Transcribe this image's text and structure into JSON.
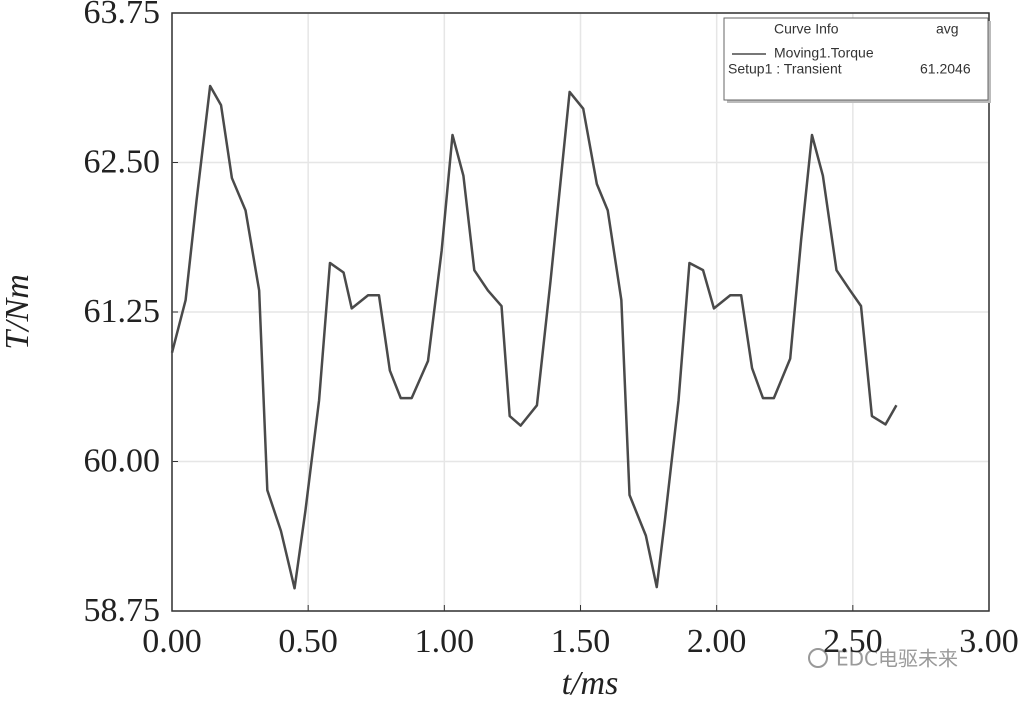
{
  "chart_data": {
    "type": "line",
    "x": [
      0,
      0.05,
      0.09,
      0.14,
      0.18,
      0.22,
      0.27,
      0.32,
      0.35,
      0.4,
      0.45,
      0.49,
      0.54,
      0.58,
      0.63,
      0.66,
      0.72,
      0.76,
      0.8,
      0.84,
      0.88,
      0.94,
      0.99,
      1.03,
      1.07,
      1.11,
      1.16,
      1.21,
      1.24,
      1.28,
      1.34,
      1.39,
      1.46,
      1.51,
      1.56,
      1.6,
      1.65,
      1.68,
      1.74,
      1.78,
      1.81,
      1.86,
      1.9,
      1.95,
      1.99,
      2.05,
      2.09,
      2.13,
      2.17,
      2.21,
      2.27,
      2.31,
      2.35,
      2.39,
      2.44,
      2.49,
      2.53,
      2.57,
      2.62,
      2.66
    ],
    "series": [
      {
        "name": "Moving1.Torque",
        "color": "#4a4a4a",
        "values": [
          60.91,
          61.35,
          62.18,
          63.14,
          62.98,
          62.37,
          62.1,
          61.43,
          59.76,
          59.42,
          58.94,
          59.59,
          60.51,
          61.66,
          61.58,
          61.28,
          61.39,
          61.39,
          60.76,
          60.53,
          60.53,
          60.84,
          61.76,
          62.73,
          62.39,
          61.6,
          61.43,
          61.3,
          60.38,
          60.3,
          60.47,
          61.51,
          63.09,
          62.95,
          62.32,
          62.1,
          61.35,
          59.72,
          59.38,
          58.95,
          59.51,
          60.51,
          61.66,
          61.6,
          61.28,
          61.39,
          61.39,
          60.78,
          60.53,
          60.53,
          60.86,
          61.85,
          62.73,
          62.39,
          61.6,
          61.43,
          61.3,
          60.38,
          60.31,
          60.47
        ]
      }
    ],
    "x_label": "t/ms",
    "y_label": "T/Nm",
    "xlim": [
      0,
      3
    ],
    "ylim": [
      58.75,
      63.75
    ],
    "xticks": [
      {
        "value": 0,
        "label": "0.00"
      },
      {
        "value": 0.5,
        "label": "0.50"
      },
      {
        "value": 1,
        "label": "1.00"
      },
      {
        "value": 1.5,
        "label": "1.50"
      },
      {
        "value": 2,
        "label": "2.00"
      },
      {
        "value": 2.5,
        "label": "2.50"
      },
      {
        "value": 3,
        "label": "3.00"
      }
    ],
    "yticks": [
      {
        "value": 58.75,
        "label": "58.75"
      },
      {
        "value": 60,
        "label": "60.00"
      },
      {
        "value": 61.25,
        "label": "61.25"
      },
      {
        "value": 62.5,
        "label": "62.50"
      },
      {
        "value": 63.75,
        "label": "63.75"
      }
    ],
    "grid": true,
    "legend": {
      "position": "upper right",
      "title": "Curve Info",
      "column": "avg",
      "setup": "Setup1 : Transient",
      "avg": 61.2046
    },
    "watermark": "EDC电驱未来"
  }
}
